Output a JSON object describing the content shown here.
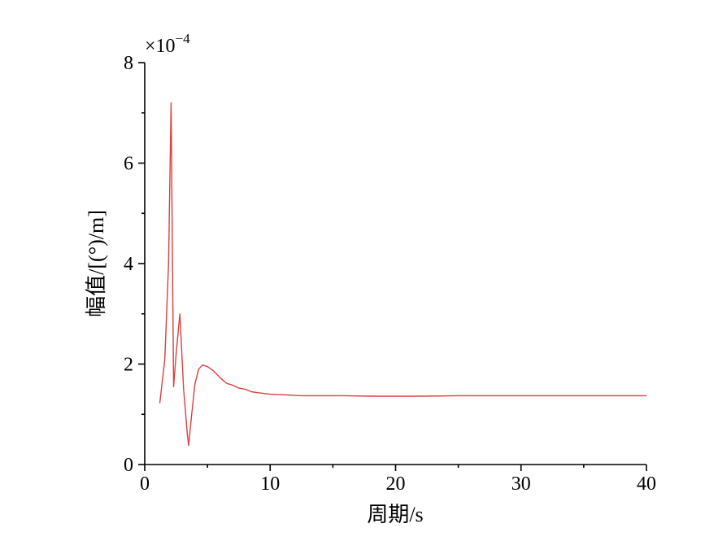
{
  "chart_data": {
    "type": "line",
    "xlabel": "周期/s",
    "ylabel": "幅值/[(°)/m]",
    "y_multiplier_label": "×10",
    "y_multiplier_exponent": "−4",
    "xlim": [
      0,
      40
    ],
    "ylim": [
      0,
      8
    ],
    "x_ticks": [
      0,
      10,
      20,
      30,
      40
    ],
    "x_tick_labels": [
      "0",
      "10",
      "20",
      "30",
      "40"
    ],
    "y_ticks": [
      0,
      2,
      4,
      6,
      8
    ],
    "y_tick_labels": [
      "0",
      "2",
      "4",
      "6",
      "8"
    ],
    "grid": false,
    "legend": "none",
    "series": [
      {
        "color": "#d9413e",
        "x": [
          1.2,
          1.6,
          1.9,
          2.1,
          2.3,
          2.5,
          2.8,
          3.1,
          3.4,
          3.5,
          3.7,
          4.0,
          4.3,
          4.6,
          5.0,
          5.5,
          6.0,
          6.5,
          7.0,
          7.5,
          8.0,
          8.5,
          9.0,
          10,
          11,
          12.5,
          14,
          16,
          18,
          20,
          22,
          25,
          28,
          30,
          35,
          40
        ],
        "y": [
          1.22,
          2.1,
          4.0,
          7.2,
          1.55,
          2.2,
          3.0,
          1.5,
          0.6,
          0.38,
          0.9,
          1.6,
          1.9,
          1.98,
          1.95,
          1.86,
          1.73,
          1.62,
          1.58,
          1.52,
          1.5,
          1.45,
          1.43,
          1.4,
          1.39,
          1.37,
          1.37,
          1.37,
          1.36,
          1.36,
          1.36,
          1.37,
          1.37,
          1.37,
          1.37,
          1.37
        ]
      }
    ]
  }
}
